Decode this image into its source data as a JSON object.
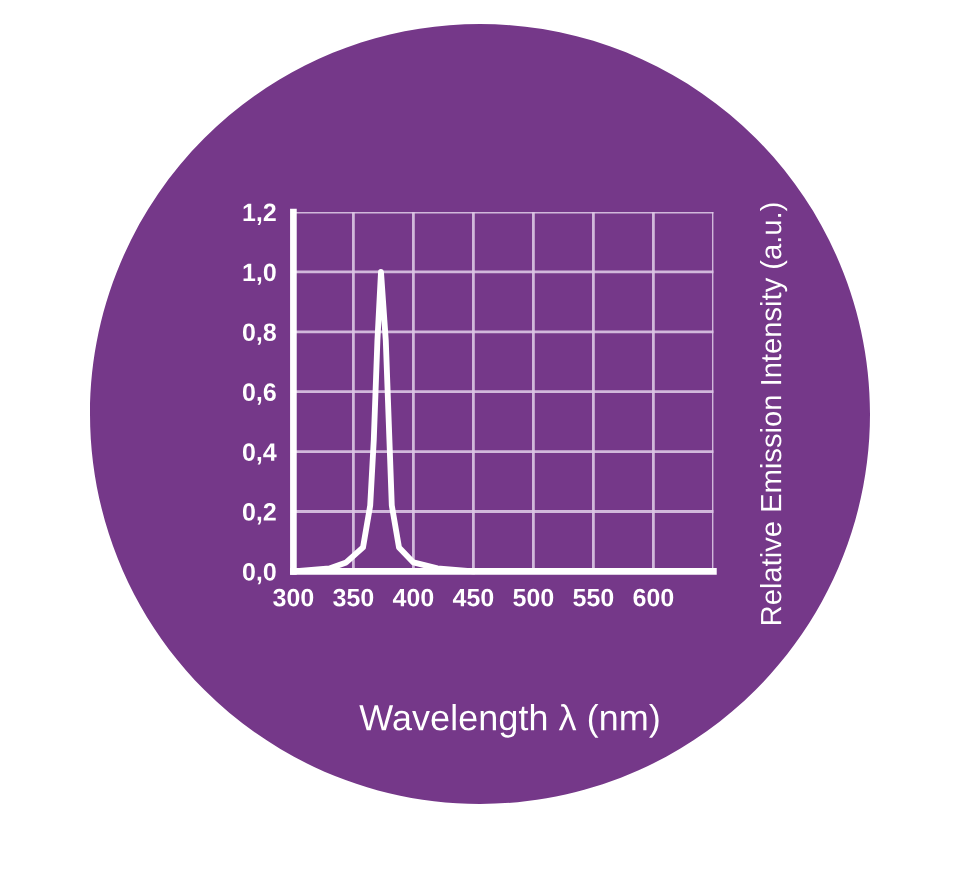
{
  "chart_data": {
    "type": "line",
    "xlabel": "Wavelength λ (nm)",
    "ylabel": "Relative Emission Intensity (a.u.)",
    "x": [
      300,
      330,
      344,
      358,
      364,
      367,
      370,
      373,
      377,
      380,
      382,
      388,
      400,
      420,
      450
    ],
    "series": [
      {
        "color": "#ffffff",
        "values": [
          0,
          0.01,
          0.03,
          0.08,
          0.22,
          0.44,
          0.77,
          1.0,
          0.77,
          0.44,
          0.22,
          0.08,
          0.03,
          0.01,
          0
        ]
      }
    ],
    "xlim": [
      300,
      650
    ],
    "ylim": [
      0,
      1.2
    ],
    "xticks": [
      300,
      350,
      400,
      450,
      500,
      550,
      600,
      {
        "value": 650,
        "label": null
      }
    ],
    "yticks": [
      {
        "value": 0,
        "label": "0,0"
      },
      {
        "value": 0.2,
        "label": "0,2"
      },
      {
        "value": 0.4,
        "label": "0,4"
      },
      {
        "value": 0.6,
        "label": "0,6"
      },
      {
        "value": 0.8,
        "label": "0,8"
      },
      {
        "value": 1.0,
        "label": "1,0"
      },
      {
        "value": 1.2,
        "label": "1,2"
      }
    ],
    "grid": true
  }
}
